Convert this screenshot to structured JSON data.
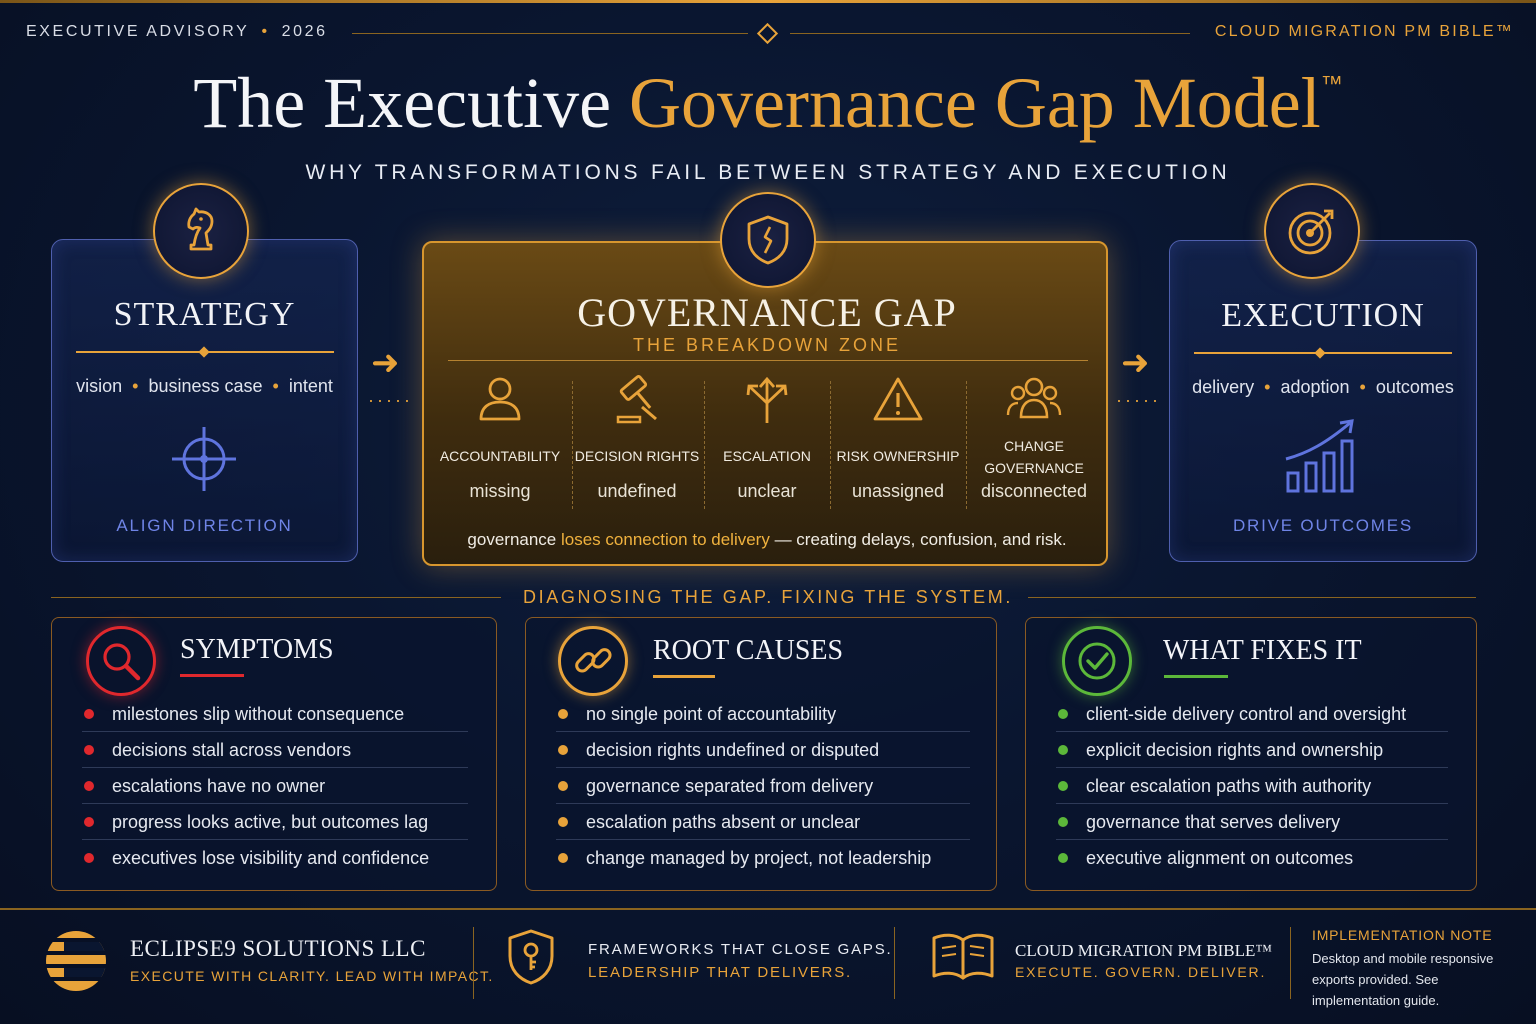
{
  "header": {
    "left_label": "EXECUTIVE ADVISORY",
    "year": "2026",
    "right_label": "CLOUD MIGRATION PM BIBLE™"
  },
  "title": {
    "part1": "The Executive",
    "part2": "Governance Gap Model",
    "mark": "™",
    "subtitle": "WHY TRANSFORMATIONS FAIL BETWEEN STRATEGY AND EXECUTION"
  },
  "strategy": {
    "title": "STRATEGY",
    "tags": [
      "vision",
      "business case",
      "intent"
    ],
    "footer": "ALIGN DIRECTION",
    "icon": "chess-knight-icon"
  },
  "gap": {
    "title": "GOVERNANCE GAP",
    "subtitle": "THE BREAKDOWN ZONE",
    "icon": "shield-crack-icon",
    "columns": [
      {
        "label": "ACCOUNTABILITY",
        "value": "missing",
        "icon": "person-icon"
      },
      {
        "label": "DECISION RIGHTS",
        "value": "undefined",
        "icon": "gavel-icon"
      },
      {
        "label": "ESCALATION",
        "value": "unclear",
        "icon": "split-arrows-icon"
      },
      {
        "label": "RISK OWNERSHIP",
        "value": "unassigned",
        "icon": "warning-icon"
      },
      {
        "label": "CHANGE GOVERNANCE",
        "label_line1": "CHANGE",
        "label_line2": "GOVERNANCE",
        "value": "disconnected",
        "icon": "people-group-icon"
      }
    ],
    "note_before": "governance",
    "note_highlight": "loses connection to delivery",
    "note_after": "— creating delays, confusion, and risk."
  },
  "execution": {
    "title": "EXECUTION",
    "tags": [
      "delivery",
      "adoption",
      "outcomes"
    ],
    "footer": "DRIVE OUTCOMES",
    "icon": "target-arrow-icon"
  },
  "divider_label": "DIAGNOSING THE GAP. FIXING THE SYSTEM.",
  "panels": {
    "symptoms": {
      "title": "SYMPTOMS",
      "items": [
        "milestones slip without consequence",
        "decisions stall across vendors",
        "escalations have no owner",
        "progress looks active, but outcomes lag",
        "executives lose visibility and confidence"
      ]
    },
    "root_causes": {
      "title": "ROOT CAUSES",
      "items": [
        "no single point of accountability",
        "decision rights undefined or disputed",
        "governance separated from delivery",
        "escalation paths absent or unclear",
        "change managed by project, not leadership"
      ]
    },
    "fixes": {
      "title": "WHAT FIXES IT",
      "items": [
        "client-side delivery control and oversight",
        "explicit decision rights and ownership",
        "clear escalation paths with authority",
        "governance that serves delivery",
        "executive alignment on outcomes"
      ]
    }
  },
  "colors": {
    "gold": "#e8a33a",
    "red": "#e0282d",
    "green": "#5cb83a",
    "blue": "#6f84e6"
  },
  "footer": {
    "company_name": "ECLIPSE9 SOLUTIONS LLC",
    "company_tag": "EXECUTE WITH CLARITY. LEAD WITH IMPACT.",
    "mid_line1": "FRAMEWORKS THAT CLOSE GAPS.",
    "mid_line2": "LEADERSHIP THAT DELIVERS.",
    "book_name": "CLOUD MIGRATION PM BIBLE™",
    "book_tag": "EXECUTE. GOVERN. DELIVER.",
    "impl_title": "IMPLEMENTATION NOTE",
    "impl_text": "Desktop and mobile responsive exports provided. See implementation guide."
  }
}
